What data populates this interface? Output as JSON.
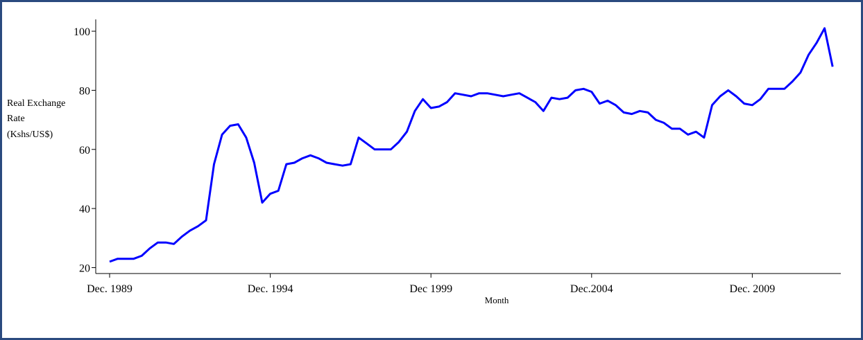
{
  "chart_data": {
    "type": "line",
    "y_label": [
      "Real Exchange",
      "Rate",
      "(Kshs/US$)"
    ],
    "x_label": "Month",
    "categories": [
      "Dec. 1989",
      null,
      null,
      null,
      null,
      null,
      null,
      null,
      null,
      null,
      null,
      null,
      null,
      null,
      null,
      null,
      null,
      null,
      null,
      null,
      "Dec. 1994",
      null,
      null,
      null,
      null,
      null,
      null,
      null,
      null,
      null,
      null,
      null,
      null,
      null,
      null,
      null,
      null,
      null,
      null,
      null,
      "Dec 1999",
      null,
      null,
      null,
      null,
      null,
      null,
      null,
      null,
      null,
      null,
      null,
      null,
      null,
      null,
      null,
      null,
      null,
      null,
      null,
      "Dec.2004",
      null,
      null,
      null,
      null,
      null,
      null,
      null,
      null,
      null,
      null,
      null,
      null,
      null,
      null,
      null,
      null,
      null,
      null,
      null,
      "Dec. 2009",
      null,
      null,
      null,
      null,
      null,
      null,
      null,
      null,
      null,
      null
    ],
    "series": [
      {
        "color": "#0000ff",
        "values": [
          22,
          23,
          23,
          23,
          24,
          26.5,
          28.5,
          28.5,
          28,
          30.5,
          32.5,
          34,
          36,
          55,
          65,
          68,
          68.5,
          64,
          55.5,
          42,
          45,
          46,
          55,
          55.5,
          57,
          58,
          57,
          55.5,
          55,
          54.5,
          55,
          64,
          62,
          60,
          60,
          60,
          62.5,
          66,
          73,
          77,
          74,
          74.5,
          76,
          79,
          78.5,
          78,
          79,
          79,
          78.5,
          78,
          78.5,
          79,
          77.5,
          76,
          73,
          77.5,
          77,
          77.5,
          80,
          80.5,
          79.5,
          75.5,
          76.5,
          75,
          72.5,
          72,
          73,
          72.5,
          70,
          69,
          67,
          67,
          65,
          66,
          64,
          75,
          78,
          80,
          78,
          75.5,
          75,
          77,
          80.5,
          80.5,
          80.5,
          83,
          86,
          92,
          96,
          101,
          88
        ]
      }
    ],
    "ylim": [
      18,
      104
    ],
    "yticks": [
      20,
      40,
      60,
      80,
      100
    ]
  }
}
